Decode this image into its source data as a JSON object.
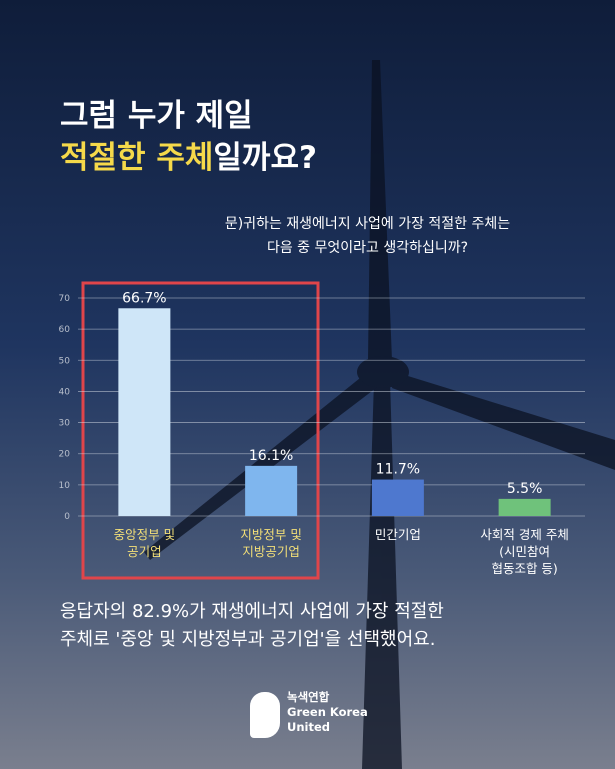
{
  "chart_data": {
    "type": "bar",
    "title_line1": "그럼 누가 제일",
    "title_highlight": "적절한 주체",
    "title_rest": "일까요?",
    "subtitle": [
      "문)귀하는 재생에너지 사업에 가장 적절한 주체는",
      "다음 중 무엇이라고 생각하십니까?"
    ],
    "categories": [
      "중앙정부 및\n공기업",
      "지방정부 및\n지방공기업",
      "민간기업",
      "사회적 경제 주체\n(시민참여\n협동조합 등)"
    ],
    "values": [
      66.7,
      16.1,
      11.7,
      5.5
    ],
    "value_labels": [
      "66.7%",
      "16.1%",
      "11.7%",
      "5.5%"
    ],
    "colors": [
      "#cfe6f8",
      "#7fb6ee",
      "#4e78cf",
      "#6fc27b"
    ],
    "category_colors": [
      "#f3df78",
      "#f3df78",
      "#ffffff",
      "#ffffff"
    ],
    "ylim": [
      0,
      70
    ],
    "yticks": [
      0,
      10,
      20,
      30,
      40,
      50,
      60,
      70
    ],
    "grid": true,
    "conclusion": [
      "응답자의 82.9%가 재생에너지 사업에 가장 적절한",
      "주체로 '중앙 및 지방정부과 공기업'을 선택했어요."
    ],
    "logo": [
      "녹색연합",
      "Green Korea",
      "United"
    ]
  }
}
